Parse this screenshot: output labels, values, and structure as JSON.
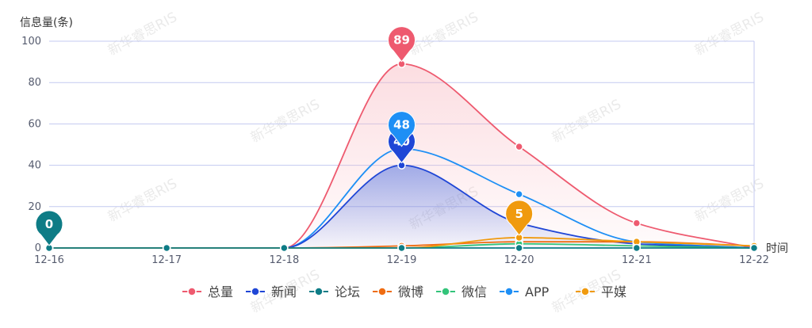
{
  "chart_data": {
    "type": "line",
    "smooth": true,
    "y_axis_name": "信息量(条)",
    "x_axis_name": "时间",
    "categories": [
      "12-16",
      "12-17",
      "12-18",
      "12-19",
      "12-20",
      "12-21",
      "12-22"
    ],
    "ylim": [
      0,
      100
    ],
    "yticks": [
      0,
      20,
      40,
      60,
      80,
      100
    ],
    "grid": true,
    "legend_position": "bottom-center",
    "series": [
      {
        "name": "总量",
        "color": "#ee5a6f",
        "values": [
          0,
          0,
          0,
          89,
          49,
          12,
          0
        ],
        "area": true,
        "area_color": "#f8b4bd",
        "markpoint": {
          "value": "89",
          "index": 3
        }
      },
      {
        "name": "新闻",
        "color": "#1f46d6",
        "values": [
          0,
          0,
          0,
          40,
          12,
          2,
          0
        ],
        "area": true,
        "area_color": "#5473e0",
        "markpoint": {
          "value": "40",
          "index": 3
        }
      },
      {
        "name": "论坛",
        "color": "#0e7c86",
        "values": [
          0,
          0,
          0,
          0,
          0,
          0,
          0
        ],
        "area": false,
        "markpoint": {
          "value": "0",
          "index": 0
        }
      },
      {
        "name": "微博",
        "color": "#ef6c12",
        "values": [
          0,
          0,
          0,
          1,
          3,
          3,
          1
        ],
        "area": false
      },
      {
        "name": "微信",
        "color": "#33c47a",
        "values": [
          0,
          0,
          0,
          0,
          2,
          1,
          0
        ],
        "area": false
      },
      {
        "name": "APP",
        "color": "#1e8ff5",
        "values": [
          0,
          0,
          0,
          48,
          26,
          3,
          0
        ],
        "area": false,
        "markpoint": {
          "value": "48",
          "index": 3
        }
      },
      {
        "name": "平媒",
        "color": "#f09a0e",
        "values": [
          0,
          0,
          0,
          0,
          5,
          3,
          1
        ],
        "area": false,
        "markpoint": {
          "value": "5",
          "index": 4
        }
      }
    ]
  },
  "watermark": "新华睿思RIS"
}
